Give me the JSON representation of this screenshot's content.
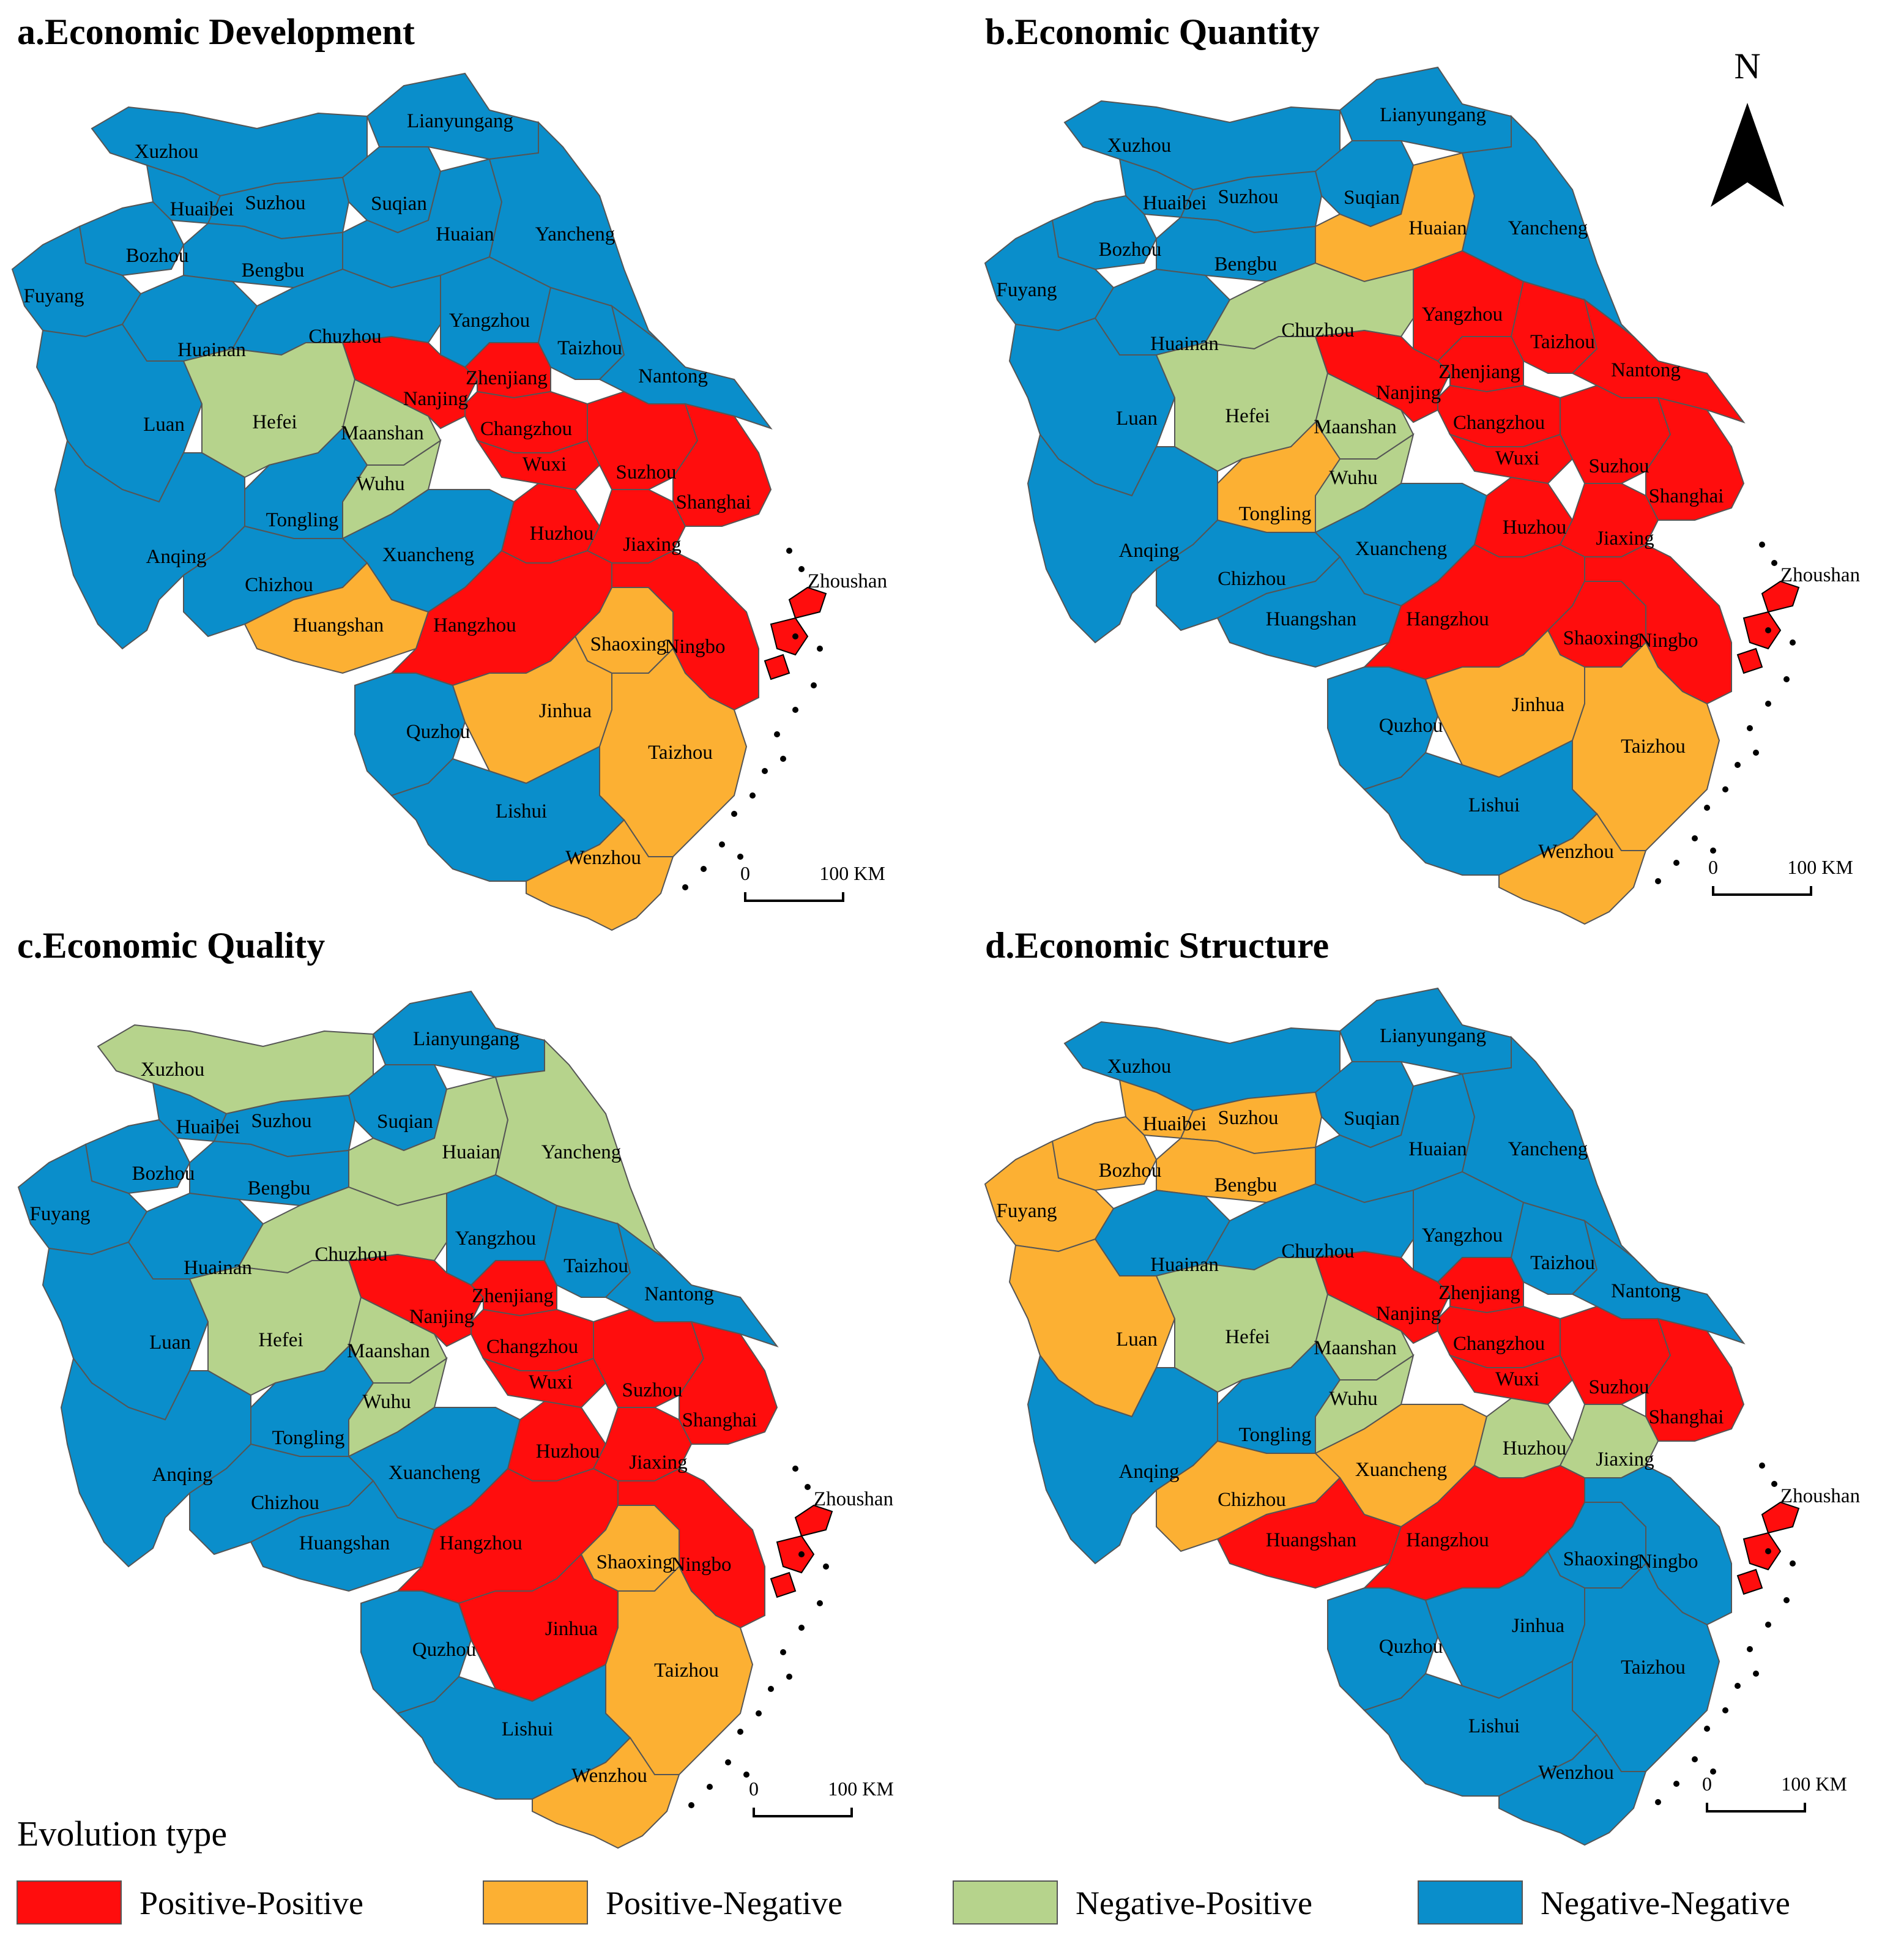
{
  "colors": {
    "Positive-Positive": "#ff0d0d",
    "Positive-Negative": "#fcb033",
    "Negative-Positive": "#b6d38c",
    "Negative-Negative": "#0a8ecb",
    "border": "#555555",
    "outline": "#000000"
  },
  "north": {
    "label": "N"
  },
  "scalebar": {
    "zero": "0",
    "end": "100 KM"
  },
  "legend": {
    "title": "Evolution type",
    "items": [
      {
        "key": "Positive-Positive",
        "label": "Positive-Positive"
      },
      {
        "key": "Positive-Negative",
        "label": "Positive-Negative"
      },
      {
        "key": "Negative-Positive",
        "label": "Negative-Positive"
      },
      {
        "key": "Negative-Negative",
        "label": "Negative-Negative"
      }
    ]
  },
  "cities": [
    "Xuzhou",
    "Lianyungang",
    "Suqian",
    "Huaibei",
    "Suzhou",
    "Bozhou",
    "Bengbu",
    "Fuyang",
    "Huainan",
    "Huaian",
    "Yancheng",
    "Chuzhou",
    "Yangzhou",
    "Taizhou",
    "Nantong",
    "Luan",
    "Hefei",
    "Maanshan",
    "Nanjing",
    "Zhenjiang",
    "Changzhou",
    "Wuxi",
    "Suzhou",
    "Shanghai",
    "Wuhu",
    "Tongling",
    "Anqing",
    "Chizhou",
    "Xuancheng",
    "Huangshan",
    "Huzhou",
    "Jiaxing",
    "Hangzhou",
    "Shaoxing",
    "Ningbo",
    "Zhoushan",
    "Quzhou",
    "Jinhua",
    "Taizhou",
    "Lishui",
    "Wenzhou"
  ],
  "panels": [
    {
      "id": "a",
      "title": "a.Economic Development",
      "types": {
        "Xuzhou": "Negative-Negative",
        "Lianyungang": "Negative-Negative",
        "Suqian": "Negative-Negative",
        "Huaibei": "Negative-Negative",
        "Suzhou_AH": "Negative-Negative",
        "Bozhou": "Negative-Negative",
        "Bengbu": "Negative-Negative",
        "Fuyang": "Negative-Negative",
        "Huainan": "Negative-Negative",
        "Huaian": "Negative-Negative",
        "Yancheng": "Negative-Negative",
        "Chuzhou": "Negative-Negative",
        "Yangzhou": "Negative-Negative",
        "Taizhou_JS": "Negative-Negative",
        "Nantong": "Negative-Negative",
        "Luan": "Negative-Negative",
        "Hefei": "Negative-Positive",
        "Maanshan": "Negative-Positive",
        "Nanjing": "Positive-Positive",
        "Zhenjiang": "Positive-Positive",
        "Changzhou": "Positive-Positive",
        "Wuxi": "Positive-Positive",
        "Suzhou_JS": "Positive-Positive",
        "Shanghai": "Positive-Positive",
        "Wuhu": "Negative-Positive",
        "Tongling": "Negative-Negative",
        "Anqing": "Negative-Negative",
        "Chizhou": "Negative-Negative",
        "Xuancheng": "Negative-Negative",
        "Huangshan": "Positive-Negative",
        "Huzhou": "Positive-Positive",
        "Jiaxing": "Positive-Positive",
        "Hangzhou": "Positive-Positive",
        "Shaoxing": "Positive-Negative",
        "Ningbo": "Positive-Positive",
        "Zhoushan": "Positive-Positive",
        "Quzhou": "Negative-Negative",
        "Jinhua": "Positive-Negative",
        "Taizhou_ZJ": "Positive-Negative",
        "Lishui": "Negative-Negative",
        "Wenzhou": "Positive-Negative"
      }
    },
    {
      "id": "b",
      "title": "b.Economic Quantity",
      "types": {
        "Xuzhou": "Negative-Negative",
        "Lianyungang": "Negative-Negative",
        "Suqian": "Negative-Negative",
        "Huaibei": "Negative-Negative",
        "Suzhou_AH": "Negative-Negative",
        "Bozhou": "Negative-Negative",
        "Bengbu": "Negative-Negative",
        "Fuyang": "Negative-Negative",
        "Huainan": "Negative-Negative",
        "Huaian": "Positive-Negative",
        "Yancheng": "Negative-Negative",
        "Chuzhou": "Negative-Positive",
        "Yangzhou": "Positive-Positive",
        "Taizhou_JS": "Positive-Positive",
        "Nantong": "Positive-Positive",
        "Luan": "Negative-Negative",
        "Hefei": "Negative-Positive",
        "Maanshan": "Negative-Positive",
        "Nanjing": "Positive-Positive",
        "Zhenjiang": "Positive-Positive",
        "Changzhou": "Positive-Positive",
        "Wuxi": "Positive-Positive",
        "Suzhou_JS": "Positive-Positive",
        "Shanghai": "Positive-Positive",
        "Wuhu": "Negative-Positive",
        "Tongling": "Positive-Negative",
        "Anqing": "Negative-Negative",
        "Chizhou": "Negative-Negative",
        "Xuancheng": "Negative-Negative",
        "Huangshan": "Negative-Negative",
        "Huzhou": "Positive-Positive",
        "Jiaxing": "Positive-Positive",
        "Hangzhou": "Positive-Positive",
        "Shaoxing": "Positive-Positive",
        "Ningbo": "Positive-Positive",
        "Zhoushan": "Positive-Positive",
        "Quzhou": "Negative-Negative",
        "Jinhua": "Positive-Negative",
        "Taizhou_ZJ": "Positive-Negative",
        "Lishui": "Negative-Negative",
        "Wenzhou": "Positive-Negative"
      }
    },
    {
      "id": "c",
      "title": "c.Economic Quality",
      "types": {
        "Xuzhou": "Negative-Positive",
        "Lianyungang": "Negative-Negative",
        "Suqian": "Negative-Negative",
        "Huaibei": "Negative-Negative",
        "Suzhou_AH": "Negative-Negative",
        "Bozhou": "Negative-Negative",
        "Bengbu": "Negative-Negative",
        "Fuyang": "Negative-Negative",
        "Huainan": "Negative-Negative",
        "Huaian": "Negative-Positive",
        "Yancheng": "Negative-Positive",
        "Chuzhou": "Negative-Positive",
        "Yangzhou": "Negative-Negative",
        "Taizhou_JS": "Negative-Negative",
        "Nantong": "Negative-Negative",
        "Luan": "Negative-Negative",
        "Hefei": "Negative-Positive",
        "Maanshan": "Negative-Positive",
        "Nanjing": "Positive-Positive",
        "Zhenjiang": "Positive-Positive",
        "Changzhou": "Positive-Positive",
        "Wuxi": "Positive-Positive",
        "Suzhou_JS": "Positive-Positive",
        "Shanghai": "Positive-Positive",
        "Wuhu": "Negative-Positive",
        "Tongling": "Negative-Negative",
        "Anqing": "Negative-Negative",
        "Chizhou": "Negative-Negative",
        "Xuancheng": "Negative-Negative",
        "Huangshan": "Negative-Negative",
        "Huzhou": "Positive-Positive",
        "Jiaxing": "Positive-Positive",
        "Hangzhou": "Positive-Positive",
        "Shaoxing": "Positive-Negative",
        "Ningbo": "Positive-Positive",
        "Zhoushan": "Positive-Positive",
        "Quzhou": "Negative-Negative",
        "Jinhua": "Positive-Positive",
        "Taizhou_ZJ": "Positive-Negative",
        "Lishui": "Negative-Negative",
        "Wenzhou": "Positive-Negative"
      }
    },
    {
      "id": "d",
      "title": "d.Economic Structure",
      "types": {
        "Xuzhou": "Negative-Negative",
        "Lianyungang": "Negative-Negative",
        "Suqian": "Negative-Negative",
        "Huaibei": "Positive-Negative",
        "Suzhou_AH": "Positive-Negative",
        "Bozhou": "Positive-Negative",
        "Bengbu": "Positive-Negative",
        "Fuyang": "Positive-Negative",
        "Huainan": "Negative-Negative",
        "Huaian": "Negative-Negative",
        "Yancheng": "Negative-Negative",
        "Chuzhou": "Negative-Negative",
        "Yangzhou": "Negative-Negative",
        "Taizhou_JS": "Negative-Negative",
        "Nantong": "Negative-Negative",
        "Luan": "Positive-Negative",
        "Hefei": "Negative-Positive",
        "Maanshan": "Negative-Positive",
        "Nanjing": "Positive-Positive",
        "Zhenjiang": "Positive-Positive",
        "Changzhou": "Positive-Positive",
        "Wuxi": "Positive-Positive",
        "Suzhou_JS": "Positive-Positive",
        "Shanghai": "Positive-Positive",
        "Wuhu": "Negative-Positive",
        "Tongling": "Negative-Negative",
        "Anqing": "Negative-Negative",
        "Chizhou": "Positive-Negative",
        "Xuancheng": "Positive-Negative",
        "Huangshan": "Positive-Positive",
        "Huzhou": "Negative-Positive",
        "Jiaxing": "Negative-Positive",
        "Hangzhou": "Positive-Positive",
        "Shaoxing": "Negative-Negative",
        "Ningbo": "Negative-Negative",
        "Zhoushan": "Positive-Positive",
        "Quzhou": "Negative-Negative",
        "Jinhua": "Negative-Negative",
        "Taizhou_ZJ": "Negative-Negative",
        "Lishui": "Negative-Negative",
        "Wenzhou": "Negative-Negative"
      }
    }
  ]
}
